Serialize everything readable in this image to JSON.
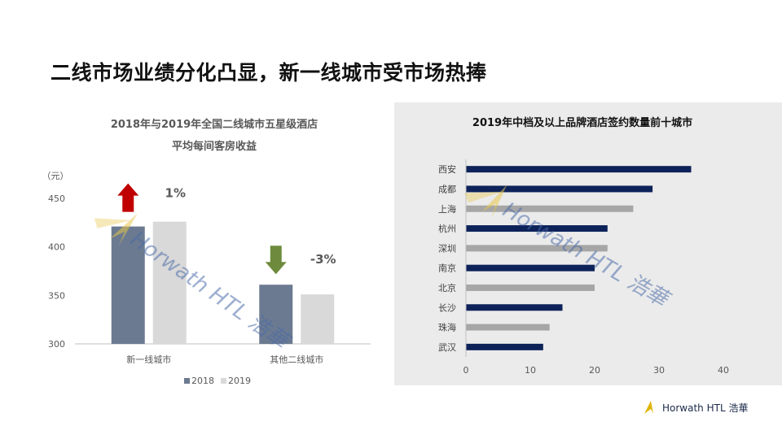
{
  "slide": {
    "title": "二线市场业绩分化凸显，新一线城市受市场热捧",
    "watermark": "Horwath HTL 浩華",
    "footer_logo_text": "Horwath HTL 浩華"
  },
  "chart_data": [
    {
      "type": "bar",
      "title": "2018年与2019年全国二线城市五星级酒店",
      "subtitle": "平均每间客房收益",
      "ylabel": "（元）",
      "categories": [
        "新一线城市",
        "其他二线城市"
      ],
      "series": [
        {
          "name": "2018",
          "values": [
            421,
            361
          ],
          "color": "#6b7a90"
        },
        {
          "name": "2019",
          "values": [
            426,
            351
          ],
          "color": "#d9d9d9"
        }
      ],
      "ylim": [
        300,
        450
      ],
      "yticks": [
        300,
        350,
        400,
        450
      ],
      "annotations": [
        {
          "category": "新一线城市",
          "text": "1%",
          "direction": "up",
          "color": "#c00000"
        },
        {
          "category": "其他二线城市",
          "text": "-3%",
          "direction": "down",
          "color": "#6e8b3d"
        }
      ],
      "legend_position": "bottom",
      "grid": false
    },
    {
      "type": "bar",
      "orientation": "horizontal",
      "title": "2019年中档及以上品牌酒店签约数量前十城市",
      "categories": [
        "西安",
        "成都",
        "上海",
        "杭州",
        "深圳",
        "南京",
        "北京",
        "长沙",
        "珠海",
        "武汉"
      ],
      "values": [
        35,
        29,
        26,
        22,
        22,
        20,
        20,
        15,
        13,
        12
      ],
      "colors": [
        "#0d2259",
        "#0d2259",
        "#a6a6a6",
        "#0d2259",
        "#a6a6a6",
        "#0d2259",
        "#a6a6a6",
        "#0d2259",
        "#a6a6a6",
        "#0d2259"
      ],
      "xlim": [
        0,
        40
      ],
      "xticks": [
        0,
        10,
        20,
        30,
        40
      ],
      "grid": false
    }
  ]
}
